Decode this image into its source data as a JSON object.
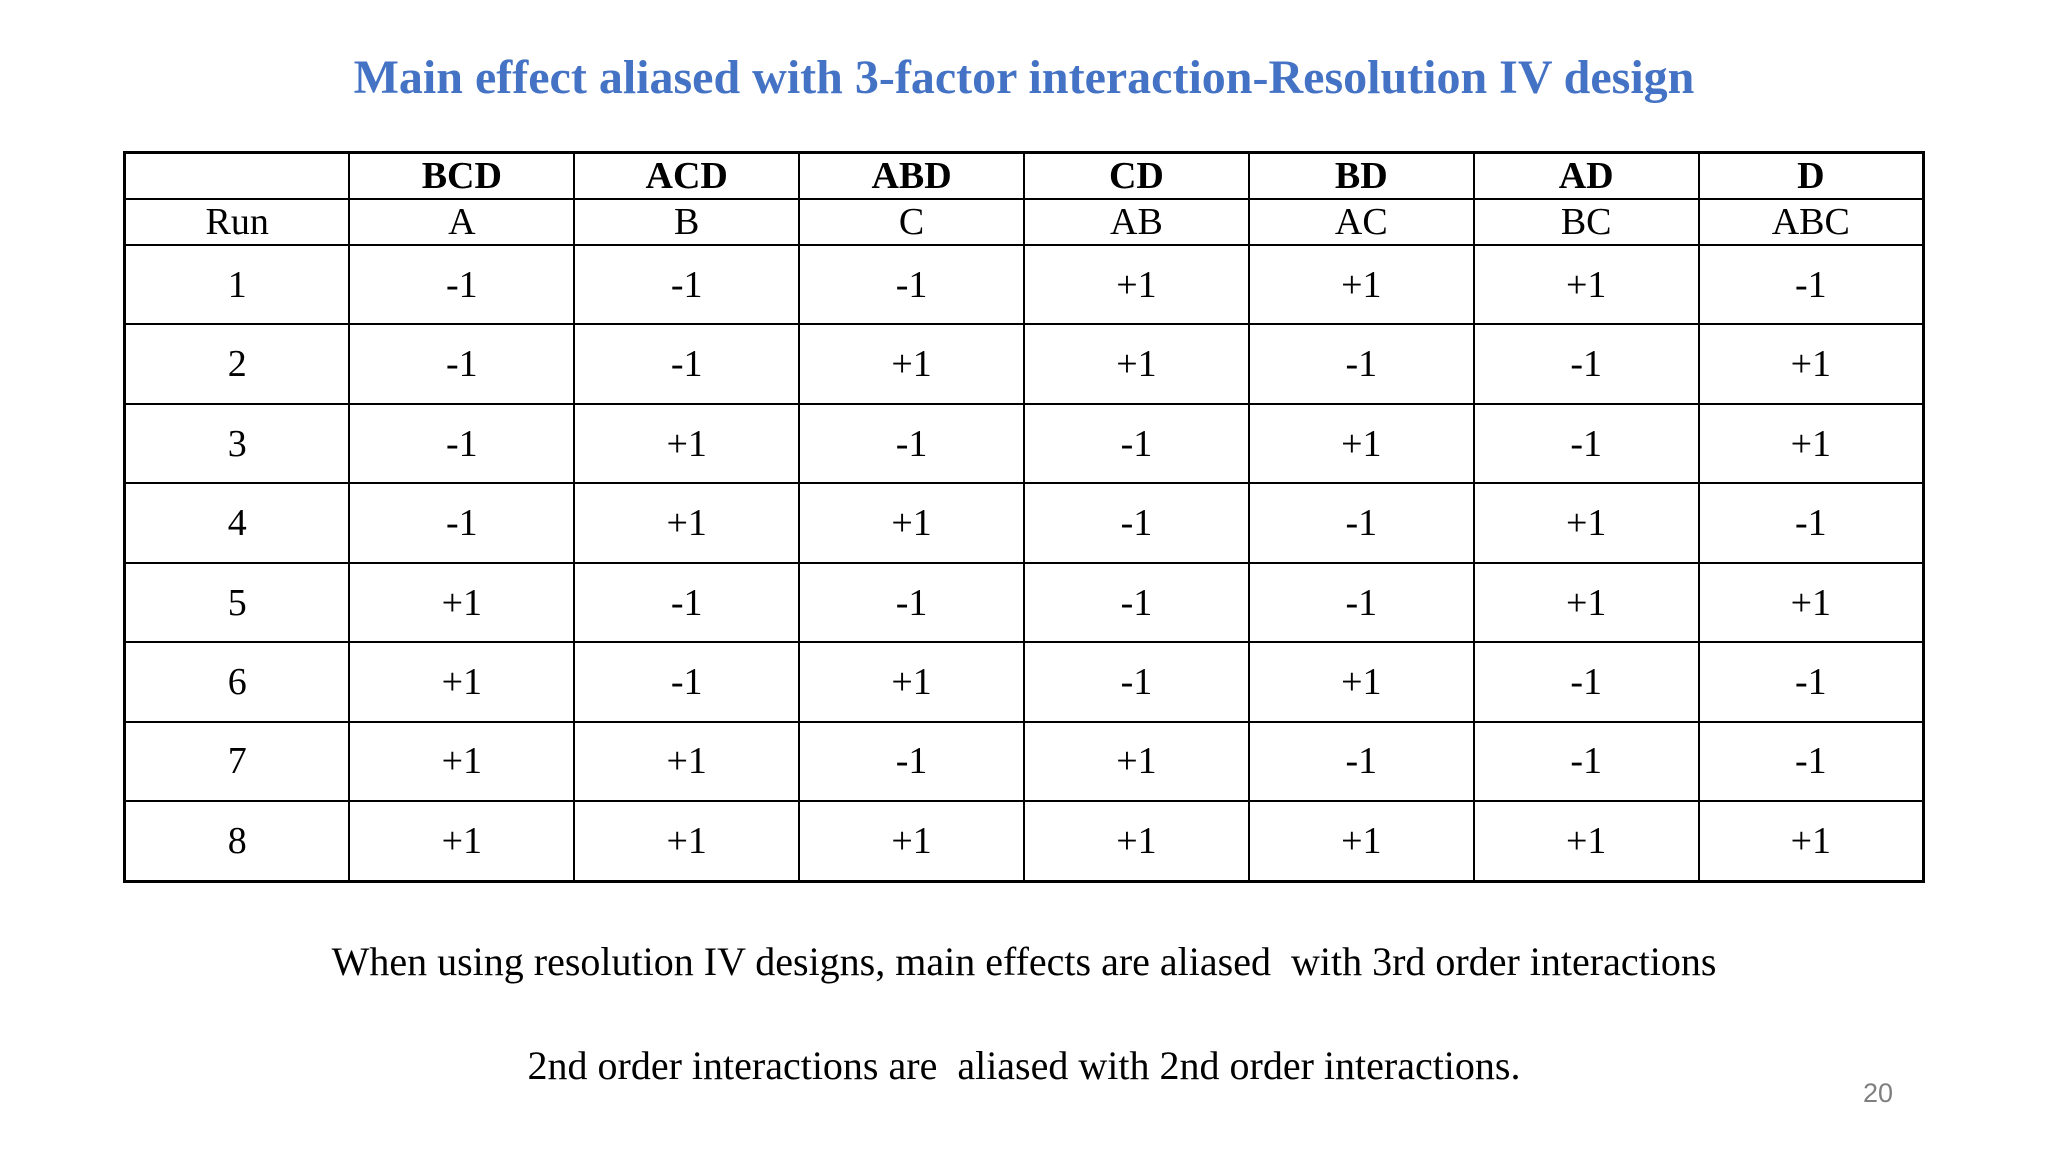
{
  "title": "Main effect aliased with 3-factor interaction-Resolution IV design",
  "table": {
    "alias_header": [
      "",
      "BCD",
      "ACD",
      "ABD",
      "CD",
      "BD",
      "AD",
      "D"
    ],
    "factor_header": [
      "Run",
      "A",
      "B",
      "C",
      "AB",
      "AC",
      "BC",
      "ABC"
    ],
    "rows": [
      [
        "1",
        "-1",
        "-1",
        "-1",
        "+1",
        "+1",
        "+1",
        "-1"
      ],
      [
        "2",
        "-1",
        "-1",
        "+1",
        "+1",
        "-1",
        "-1",
        "+1"
      ],
      [
        "3",
        "-1",
        "+1",
        "-1",
        "-1",
        "+1",
        "-1",
        "+1"
      ],
      [
        "4",
        "-1",
        "+1",
        "+1",
        "-1",
        "-1",
        "+1",
        "-1"
      ],
      [
        "5",
        "+1",
        "-1",
        "-1",
        "-1",
        "-1",
        "+1",
        "+1"
      ],
      [
        "6",
        "+1",
        "-1",
        "+1",
        "-1",
        "+1",
        "-1",
        "-1"
      ],
      [
        "7",
        "+1",
        "+1",
        "-1",
        "+1",
        "-1",
        "-1",
        "-1"
      ],
      [
        "8",
        "+1",
        "+1",
        "+1",
        "+1",
        "+1",
        "+1",
        "+1"
      ]
    ]
  },
  "notes": {
    "line1": "When using resolution IV designs, main effects are aliased  with 3rd order interactions",
    "line2": "2nd order interactions are  aliased with 2nd order interactions."
  },
  "page_number": "20",
  "colors": {
    "title": "#4472C4",
    "page_number": "#7F7F7F"
  }
}
